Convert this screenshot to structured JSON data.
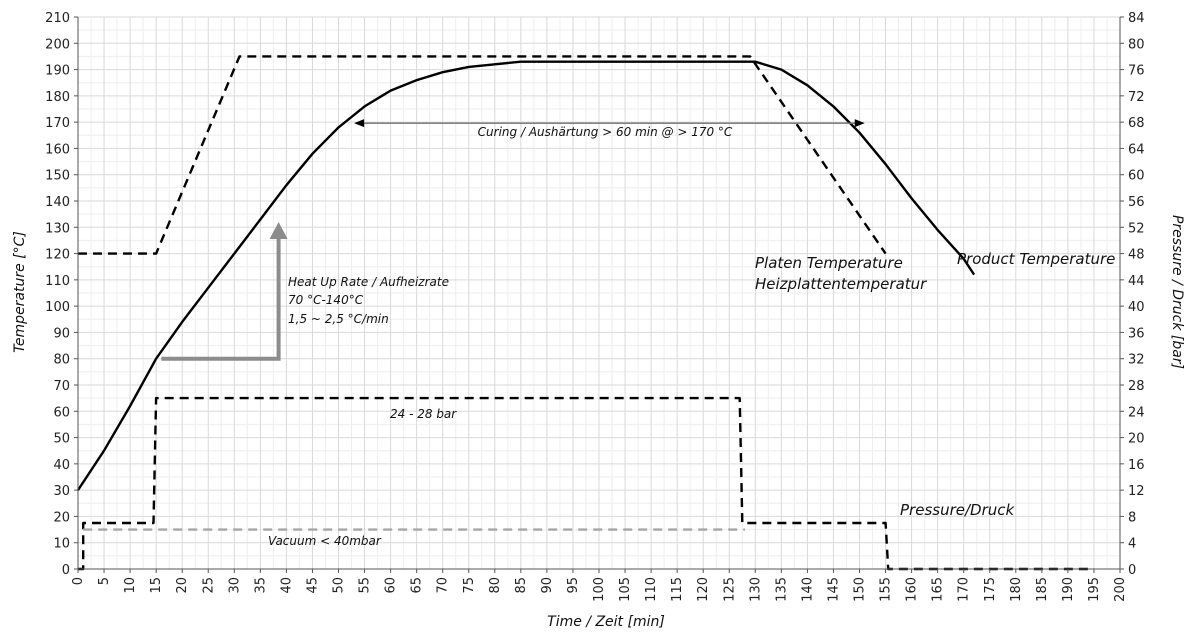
{
  "chart_data": {
    "type": "line",
    "xlabel": "Time / Zeit [min]",
    "ylabel": "Temperature [°C]",
    "y2label": "Pressure / Druck [bar]",
    "xlim": [
      0,
      200
    ],
    "ylim": [
      0,
      210
    ],
    "y2lim": [
      0,
      84
    ],
    "x_ticks": [
      0,
      5,
      10,
      15,
      20,
      25,
      30,
      35,
      40,
      45,
      50,
      55,
      60,
      65,
      70,
      75,
      80,
      85,
      90,
      95,
      100,
      105,
      110,
      115,
      120,
      125,
      130,
      135,
      140,
      145,
      150,
      155,
      160,
      165,
      170,
      175,
      180,
      185,
      190,
      195,
      200
    ],
    "y_ticks": [
      0,
      10,
      20,
      30,
      40,
      50,
      60,
      70,
      80,
      90,
      100,
      110,
      120,
      130,
      140,
      150,
      160,
      170,
      180,
      190,
      200,
      210
    ],
    "y2_ticks": [
      0,
      4,
      8,
      12,
      16,
      20,
      24,
      28,
      32,
      36,
      40,
      44,
      48,
      52,
      56,
      60,
      64,
      68,
      72,
      76,
      80,
      84
    ],
    "grid": true,
    "series": [
      {
        "name": "Platen Temperature",
        "name2": "Heizplattentemperatur",
        "axis": "left",
        "style": "dashed",
        "color": "#000000",
        "x": [
          0,
          15,
          31,
          129,
          155
        ],
        "y": [
          120,
          120,
          195,
          195,
          120
        ]
      },
      {
        "name": "Product Temperature",
        "axis": "left",
        "style": "solid",
        "color": "#000000",
        "x": [
          0,
          5,
          10,
          15,
          20,
          25,
          30,
          35,
          40,
          45,
          50,
          55,
          60,
          65,
          70,
          75,
          80,
          85,
          90,
          95,
          100,
          110,
          120,
          125,
          130,
          135,
          140,
          145,
          150,
          155,
          160,
          165,
          170,
          172
        ],
        "y": [
          30,
          45,
          62,
          80,
          94,
          107,
          120,
          133,
          146,
          158,
          168,
          176,
          182,
          186,
          189,
          191,
          192,
          193,
          193,
          193,
          193,
          193,
          193,
          193,
          193,
          190,
          184,
          176,
          166,
          154,
          141,
          129,
          118,
          112
        ]
      },
      {
        "name": "Pressure/Druck",
        "axis": "right",
        "style": "dashed",
        "color": "#000000",
        "x": [
          0,
          1,
          1,
          14.5,
          15,
          127,
          127.5,
          155,
          155.5,
          195
        ],
        "y": [
          0,
          0,
          7,
          7,
          26,
          26,
          7,
          7,
          0,
          0
        ]
      },
      {
        "name": "Vacuum < 40mbar",
        "axis": "right",
        "style": "dashed",
        "color": "#a6a6a6",
        "x": [
          1,
          128
        ],
        "y": [
          6,
          6
        ]
      }
    ],
    "annotations": {
      "curing": {
        "text": "Curing / Aushärtung > 60 min @ > 170 °C",
        "x_from": 53,
        "x_to": 151,
        "y": 170
      },
      "heatup": {
        "line1": "Heat Up Rate / Aufheizrate",
        "line2": "70 °C-140°C",
        "line3": "1,5 ~ 2,5 °C/min"
      },
      "pressure_range": "24 - 28 bar",
      "vacuum": "Vacuum < 40mbar",
      "pressure_label": "Pressure/Druck",
      "platen_label_1": "Platen Temperature",
      "platen_label_2": "Heizplattentemperatur",
      "product_label": "Product Temperature"
    },
    "colors": {
      "grid_major": "#d9d9d9",
      "grid_minor": "#eeeeee",
      "arrow_gray": "#8c8c8c",
      "line": "#000000",
      "vacuum": "#a6a6a6"
    }
  }
}
